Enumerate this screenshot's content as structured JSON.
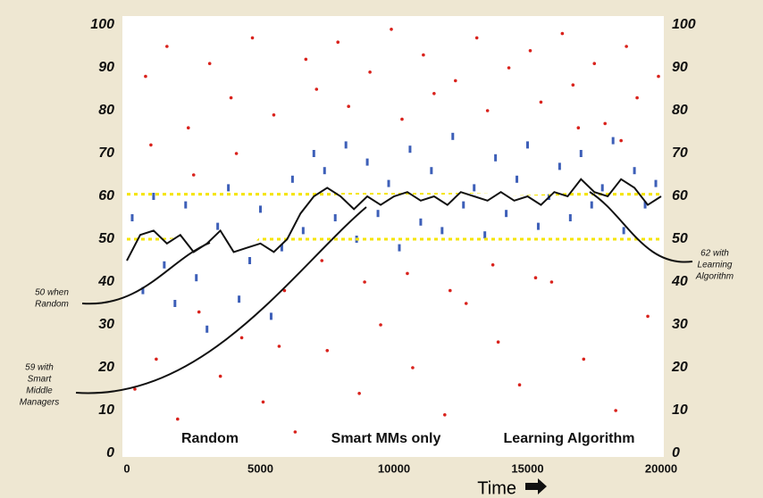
{
  "chart_data": {
    "type": "scatter",
    "xlabel": "Time",
    "xlim": [
      0,
      20000
    ],
    "xticks": [
      0,
      5000,
      10000,
      15000,
      20000
    ],
    "ylim": [
      0,
      100
    ],
    "yticks": [
      0,
      10,
      20,
      30,
      40,
      50,
      60,
      70,
      80,
      90,
      100
    ],
    "hlines": [
      {
        "value": 50,
        "color": "#f5e400"
      },
      {
        "value": 60.5,
        "color": "#f5e400"
      }
    ],
    "series": [
      {
        "mark": "dot",
        "color": "#d9221c",
        "x": [
          300,
          700,
          1100,
          1500,
          1900,
          2300,
          2700,
          3100,
          3500,
          3900,
          4300,
          4700,
          5100,
          5500,
          5900,
          6300,
          6700,
          7100,
          7500,
          7900,
          8300,
          8700,
          9100,
          9500,
          9900,
          10300,
          10700,
          11100,
          11500,
          11900,
          12300,
          12700,
          13100,
          13500,
          13900,
          14300,
          14700,
          15100,
          15500,
          15900,
          16300,
          16700,
          17100,
          17500,
          17900,
          18300,
          18700,
          19100,
          19500,
          19900,
          900,
          2500,
          4100,
          5700,
          7300,
          8900,
          10500,
          12100,
          13700,
          15300,
          16900,
          18500
        ],
        "values": [
          15,
          88,
          22,
          95,
          8,
          76,
          33,
          91,
          18,
          83,
          27,
          97,
          12,
          79,
          38,
          5,
          92,
          85,
          24,
          96,
          81,
          14,
          89,
          30,
          99,
          78,
          20,
          93,
          84,
          9,
          87,
          35,
          97,
          80,
          26,
          90,
          16,
          94,
          82,
          40,
          98,
          86,
          22,
          91,
          77,
          10,
          95,
          83,
          32,
          88,
          72,
          65,
          70,
          25,
          45,
          40,
          42,
          38,
          44,
          41,
          76,
          73
        ]
      },
      {
        "mark": "dash",
        "color": "#3d5fb8",
        "x": [
          200,
          600,
          1000,
          1400,
          1800,
          2200,
          2600,
          3000,
          3400,
          3800,
          4200,
          4600,
          5000,
          5400,
          5800,
          6200,
          6600,
          7000,
          7400,
          7800,
          8200,
          8600,
          9000,
          9400,
          9800,
          10200,
          10600,
          11000,
          11400,
          11800,
          12200,
          12600,
          13000,
          13400,
          13800,
          14200,
          14600,
          15000,
          15400,
          15800,
          16200,
          16600,
          17000,
          17400,
          17800,
          18200,
          18600,
          19000,
          19400,
          19800
        ],
        "values": [
          55,
          38,
          60,
          44,
          35,
          58,
          41,
          29,
          53,
          62,
          36,
          45,
          57,
          32,
          48,
          64,
          52,
          70,
          66,
          55,
          72,
          50,
          68,
          56,
          63,
          48,
          71,
          54,
          66,
          52,
          74,
          58,
          62,
          51,
          69,
          56,
          64,
          72,
          53,
          60,
          67,
          55,
          70,
          58,
          62,
          73,
          52,
          66,
          58,
          63
        ]
      },
      {
        "mark": "line",
        "color": "#ffffff",
        "x": [
          0,
          1000,
          2000,
          3000,
          4000,
          4800,
          5500,
          6500,
          7000,
          8000,
          10000,
          12000,
          14000,
          16000,
          17000,
          17500
        ],
        "values": [
          49,
          49,
          50,
          50,
          50,
          50,
          54,
          57,
          59,
          60,
          60,
          60,
          60.5,
          61,
          61.5,
          61
        ]
      },
      {
        "mark": "line",
        "color": "#111111",
        "x": [
          0,
          500,
          1000,
          1500,
          2000,
          2500,
          3000,
          3500,
          4000,
          4500,
          5000,
          5500,
          6000,
          6500,
          7000,
          7500,
          8000,
          8500,
          9000,
          9500,
          10000,
          10500,
          11000,
          11500,
          12000,
          12500,
          13000,
          13500,
          14000,
          14500,
          15000,
          15500,
          16000,
          16500,
          17000,
          17500,
          18000,
          18500,
          19000,
          19500,
          20000
        ],
        "values": [
          45,
          51,
          52,
          49,
          51,
          47,
          49,
          52,
          47,
          48,
          49,
          47,
          50,
          56,
          60,
          62,
          60,
          57,
          60,
          58,
          60,
          61,
          59,
          60,
          58,
          61,
          60,
          59,
          61,
          59,
          60,
          58,
          61,
          60,
          64,
          61,
          60,
          64,
          62,
          58,
          60
        ]
      }
    ],
    "annotations": [
      {
        "lines": [
          "50 when",
          "Random"
        ]
      },
      {
        "lines": [
          "59 with",
          "Smart",
          "Middle",
          "Managers"
        ]
      },
      {
        "lines": [
          "62 with",
          "Learning",
          "Algorithm"
        ]
      }
    ],
    "regions": [
      "Random",
      "Smart MMs only",
      "Learning Algorithm"
    ]
  }
}
